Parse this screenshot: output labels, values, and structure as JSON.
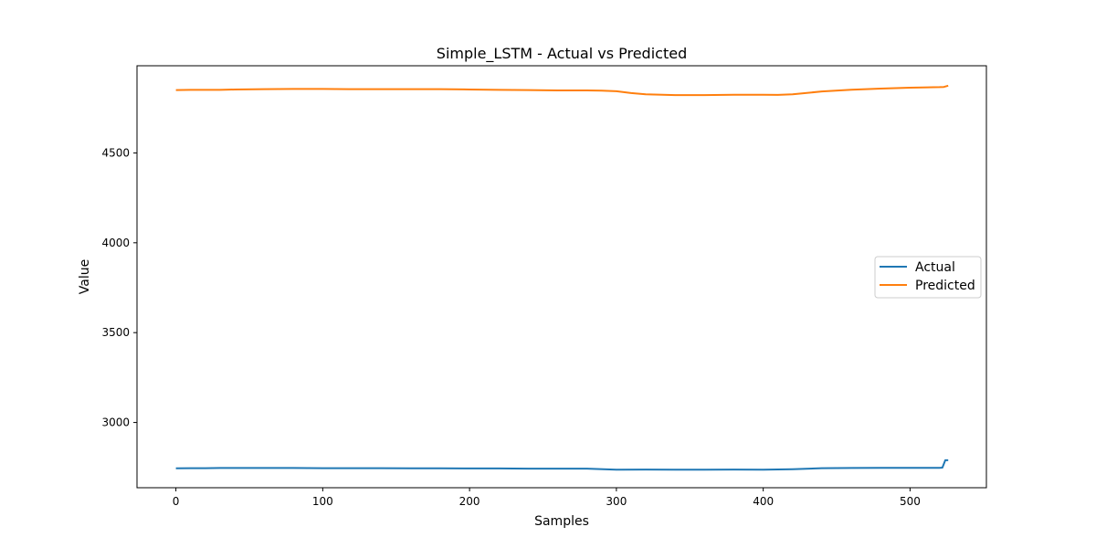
{
  "chart_data": {
    "type": "line",
    "title": "Simple_LSTM - Actual vs Predicted",
    "xlabel": "Samples",
    "ylabel": "Value",
    "xlim": [
      -26.5,
      552
    ],
    "ylim": [
      2637,
      4985
    ],
    "xticks": [
      0,
      100,
      200,
      300,
      400,
      500
    ],
    "yticks": [
      3000,
      3500,
      4000,
      4500
    ],
    "legend_position": "center-right",
    "series": [
      {
        "name": "Actual",
        "color": "#1f77b4",
        "x": [
          0,
          10,
          20,
          30,
          40,
          60,
          80,
          100,
          120,
          140,
          160,
          180,
          200,
          220,
          240,
          260,
          280,
          300,
          320,
          340,
          360,
          380,
          400,
          420,
          440,
          460,
          480,
          500,
          520,
          522,
          524,
          526
        ],
        "values": [
          2745,
          2746,
          2746,
          2747,
          2747,
          2747,
          2747,
          2746,
          2746,
          2746,
          2745,
          2745,
          2744,
          2744,
          2743,
          2743,
          2743,
          2737,
          2738,
          2737,
          2737,
          2738,
          2737,
          2740,
          2746,
          2747,
          2748,
          2748,
          2748,
          2749,
          2790,
          2790
        ]
      },
      {
        "name": "Predicted",
        "color": "#ff7f0e",
        "x": [
          0,
          10,
          20,
          30,
          40,
          60,
          80,
          100,
          120,
          140,
          160,
          180,
          200,
          220,
          240,
          260,
          280,
          290,
          300,
          310,
          320,
          340,
          360,
          380,
          400,
          410,
          420,
          440,
          460,
          480,
          500,
          520,
          523,
          526
        ],
        "values": [
          4850,
          4851,
          4851,
          4851,
          4853,
          4855,
          4856,
          4856,
          4855,
          4855,
          4855,
          4855,
          4853,
          4851,
          4850,
          4848,
          4848,
          4847,
          4843,
          4833,
          4826,
          4822,
          4822,
          4824,
          4824,
          4823,
          4826,
          4842,
          4852,
          4858,
          4863,
          4866,
          4867,
          4874
        ]
      }
    ]
  }
}
